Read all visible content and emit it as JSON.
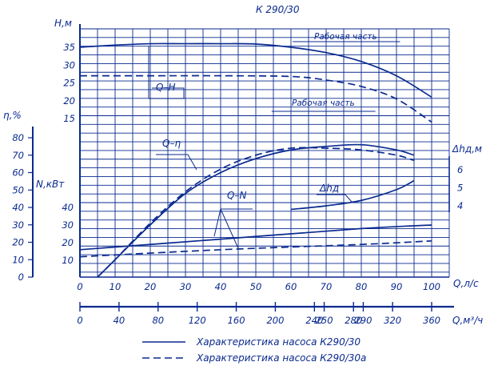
{
  "chart_data": {
    "type": "line",
    "title": "К 290/30",
    "x_axis_primary": {
      "label": "Q,л/с",
      "range": [
        0,
        105
      ],
      "ticks": [
        "0",
        "10",
        "20",
        "30",
        "40",
        "50",
        "60",
        "70",
        "80",
        "90",
        "100"
      ]
    },
    "x_axis_secondary": {
      "label": "Q,м³/ч",
      "ticks": [
        "0",
        "40",
        "80",
        "120",
        "160",
        "200",
        "240",
        "250",
        "280",
        "290",
        "320",
        "360"
      ]
    },
    "y_axes": {
      "H": {
        "label": "Н,м",
        "ticks": [
          "15",
          "20",
          "25",
          "30",
          "35"
        ]
      },
      "eta": {
        "label": "η,%",
        "ticks": [
          "0",
          "10",
          "20",
          "30",
          "40",
          "50",
          "60",
          "70",
          "80"
        ]
      },
      "N": {
        "label": "N,кВт",
        "ticks": [
          "10",
          "20",
          "30",
          "40"
        ]
      },
      "npsh": {
        "label": "Δhд,м",
        "ticks": [
          "4",
          "5",
          "6"
        ]
      }
    },
    "annotations": {
      "working_part": "Рабочая часть",
      "q_h": "Q–H",
      "q_eta": "Q–η",
      "q_n": "Q–N",
      "dh": "Δhд"
    },
    "legend": [
      {
        "label": "Характеристика насоса К290/30",
        "style": "solid"
      },
      {
        "label": "Характеристика насоса К290/30а",
        "style": "dashed"
      }
    ],
    "series": [
      {
        "curve": "Q-H",
        "style": "solid",
        "x": [
          0,
          10,
          20,
          30,
          40,
          50,
          60,
          70,
          80,
          90,
          100
        ],
        "y": [
          35,
          35.6,
          36,
          36,
          36,
          35.9,
          35,
          33.5,
          31,
          27,
          21
        ]
      },
      {
        "curve": "Q-H",
        "style": "dashed",
        "x": [
          0,
          20,
          40,
          60,
          70,
          80,
          90,
          100
        ],
        "y": [
          27,
          27,
          27,
          26.8,
          25.8,
          24,
          20.5,
          14
        ]
      },
      {
        "curve": "Q-eta",
        "style": "solid",
        "x": [
          5,
          10,
          20,
          30,
          40,
          50,
          60,
          70,
          80,
          90,
          95
        ],
        "y": [
          0,
          10,
          30,
          48,
          60,
          68,
          73,
          75,
          76,
          73,
          70
        ]
      },
      {
        "curve": "Q-eta",
        "style": "dashed",
        "x": [
          5,
          10,
          20,
          30,
          40,
          50,
          60,
          70,
          80,
          90,
          95
        ],
        "y": [
          0,
          10,
          31,
          49,
          62,
          70,
          74,
          74,
          73,
          70,
          67
        ]
      },
      {
        "curve": "Q-N",
        "style": "solid",
        "x": [
          0,
          40,
          80,
          100
        ],
        "y": [
          16,
          22,
          28,
          30
        ]
      },
      {
        "curve": "Q-N",
        "style": "dashed",
        "x": [
          0,
          40,
          80,
          100
        ],
        "y": [
          12,
          16,
          19,
          21
        ]
      },
      {
        "curve": "NPSH",
        "style": "solid",
        "x": [
          60,
          70,
          80,
          90,
          95
        ],
        "y": [
          3.8,
          4.0,
          4.3,
          4.9,
          5.4
        ]
      }
    ]
  }
}
